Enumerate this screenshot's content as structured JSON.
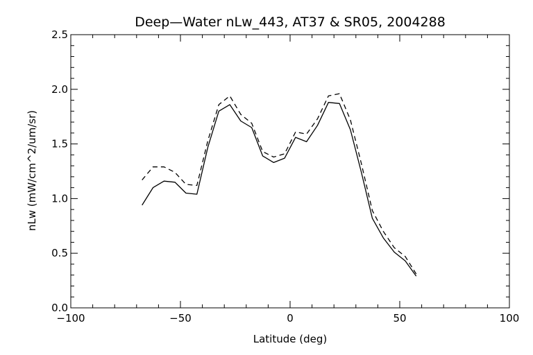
{
  "chart_data": {
    "type": "line",
    "title": "Deep—Water nLw_443, AT37 & SR05, 2004288",
    "xlabel": "Latitude (deg)",
    "ylabel": "nLw (mW/cm^2/um/sr)",
    "xlim": [
      -100,
      100
    ],
    "ylim": [
      0.0,
      2.5
    ],
    "xticks": [
      -100,
      -50,
      0,
      50,
      100
    ],
    "xtick_labels": [
      "−100",
      "−50",
      "0",
      "50",
      "100"
    ],
    "yticks": [
      0.0,
      0.5,
      1.0,
      1.5,
      2.0,
      2.5
    ],
    "ytick_labels": [
      "0.0",
      "0.5",
      "1.0",
      "1.5",
      "2.0",
      "2.5"
    ],
    "grid": false,
    "series": [
      {
        "style": "solid",
        "color": "#000000",
        "x": [
          -67.5,
          -62.5,
          -57.5,
          -52.5,
          -47.5,
          -42.5,
          -37.5,
          -32.5,
          -27.5,
          -22.5,
          -17.5,
          -12.5,
          -7.5,
          -2.5,
          2.5,
          7.5,
          12.5,
          17.5,
          22.5,
          27.5,
          32.5,
          37.5,
          42.5,
          47.5,
          52.5,
          57.5
        ],
        "y": [
          0.94,
          1.1,
          1.16,
          1.15,
          1.05,
          1.04,
          1.47,
          1.8,
          1.86,
          1.71,
          1.65,
          1.39,
          1.33,
          1.37,
          1.56,
          1.52,
          1.67,
          1.88,
          1.87,
          1.63,
          1.24,
          0.82,
          0.64,
          0.51,
          0.43,
          0.29
        ]
      },
      {
        "style": "dashed",
        "color": "#000000",
        "x": [
          -67.5,
          -62.5,
          -57.5,
          -52.5,
          -47.5,
          -42.5,
          -37.5,
          -32.5,
          -27.5,
          -22.5,
          -17.5,
          -12.5,
          -7.5,
          -2.5,
          2.5,
          7.5,
          12.5,
          17.5,
          22.5,
          27.5,
          32.5,
          37.5,
          42.5,
          47.5,
          52.5,
          57.5
        ],
        "y": [
          1.17,
          1.29,
          1.29,
          1.24,
          1.13,
          1.12,
          1.53,
          1.86,
          1.94,
          1.77,
          1.69,
          1.43,
          1.38,
          1.41,
          1.61,
          1.59,
          1.73,
          1.94,
          1.96,
          1.72,
          1.32,
          0.89,
          0.7,
          0.55,
          0.47,
          0.31
        ]
      }
    ]
  }
}
